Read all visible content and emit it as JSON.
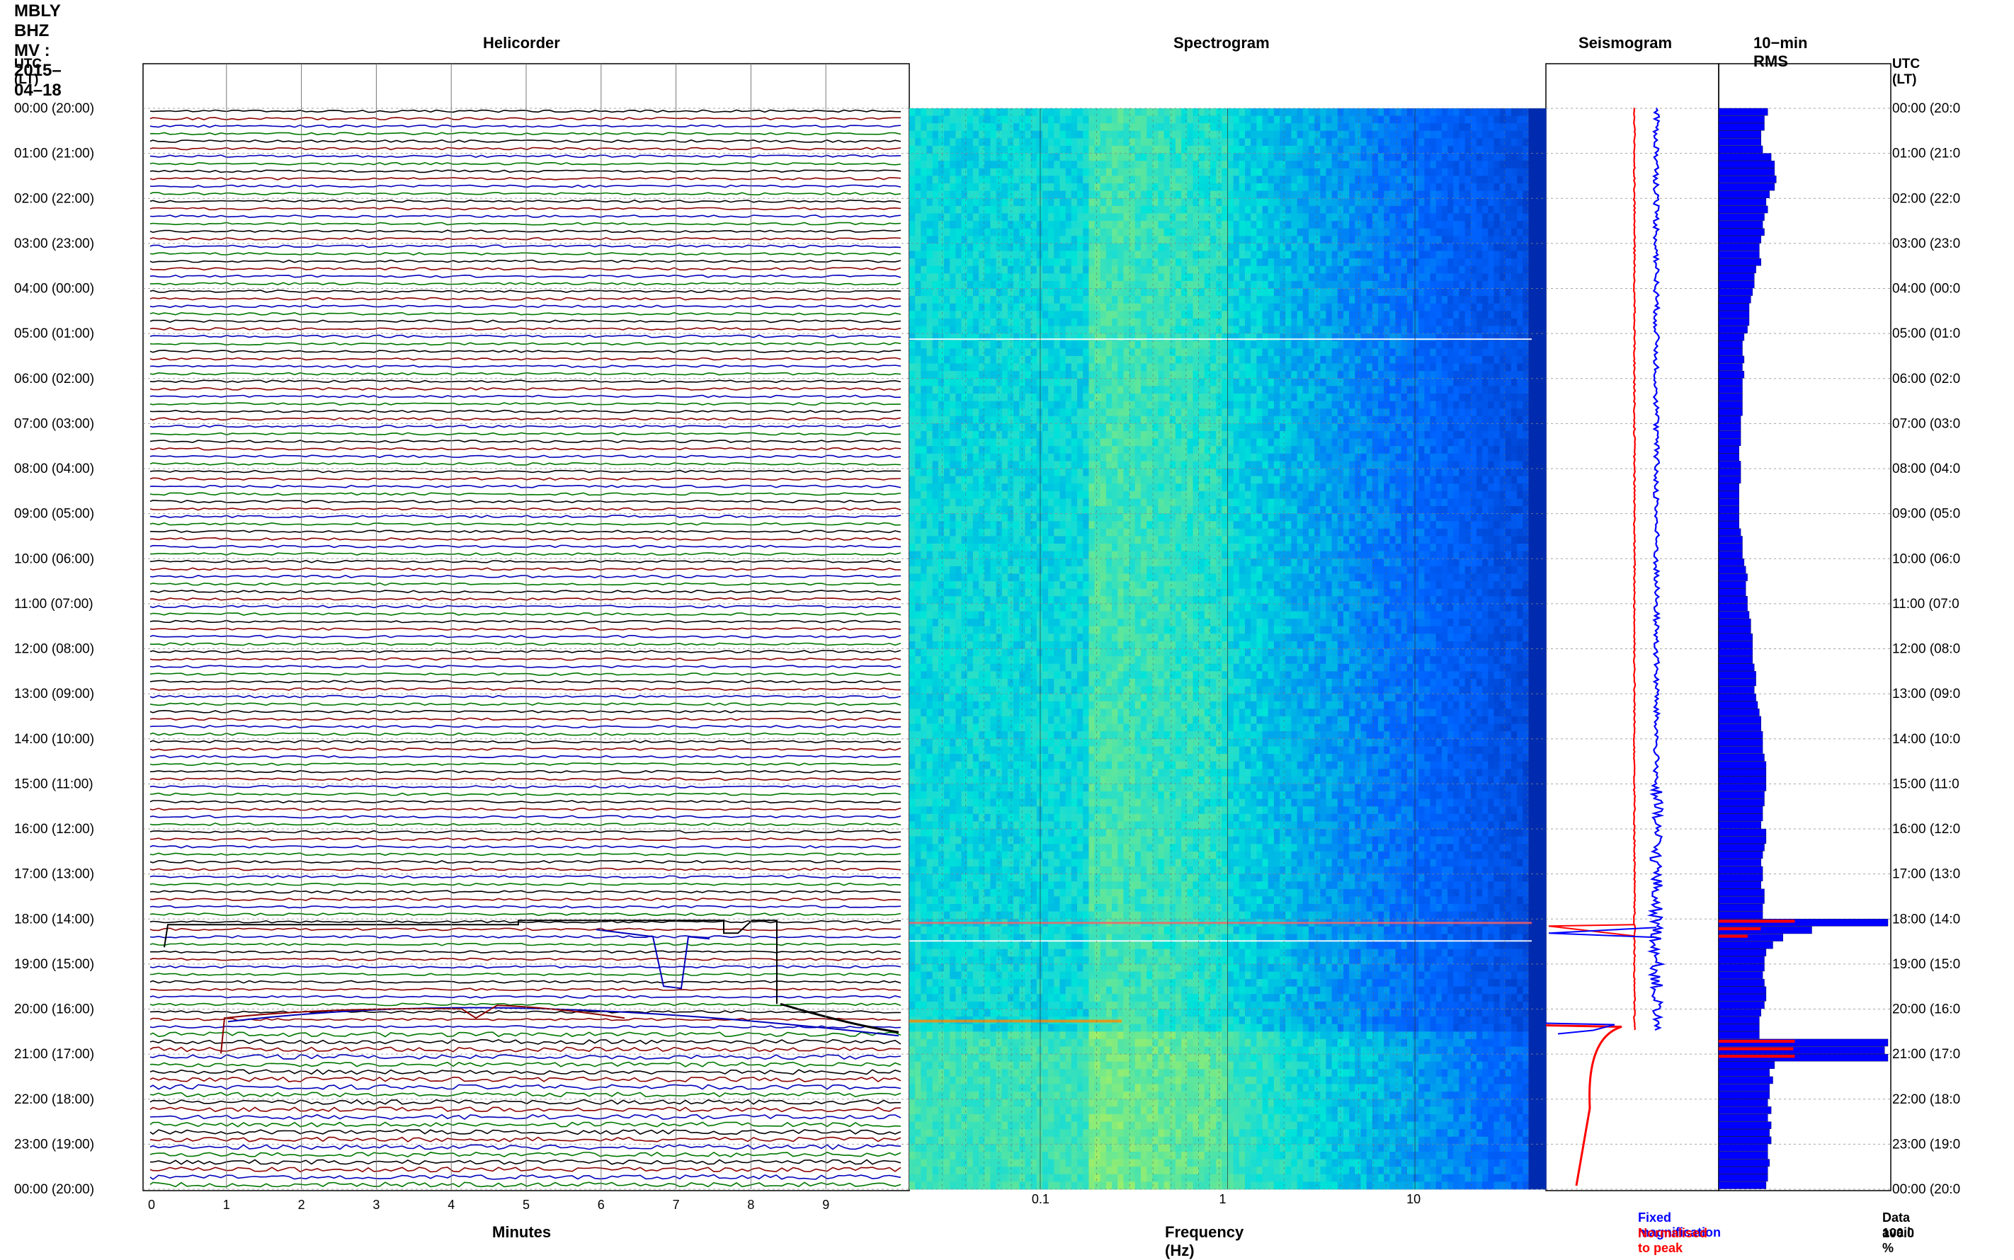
{
  "header": {
    "station_title": "MBLY BHZ MV : 2015–04–18",
    "left_axis_title": "UTC (LT)",
    "right_axis_title": "UTC (LT)"
  },
  "panels": {
    "helicorder": {
      "title": "Helicorder",
      "xlabel": "Minutes",
      "x_ticks": [
        "0",
        "1",
        "2",
        "3",
        "4",
        "5",
        "6",
        "7",
        "8",
        "9"
      ]
    },
    "spectrogram": {
      "title": "Spectrogram",
      "xlabel": "Frequency (Hz)",
      "x_ticks": [
        "0.1",
        "1",
        "10"
      ]
    },
    "seismogram": {
      "title": "Seismogram",
      "legend_fixed": "Fixed magnification",
      "legend_norm": "Normalised to peak"
    },
    "rms": {
      "title": "10−min RMS",
      "avail_label": "Data avail.",
      "avail_value": "100.0 %"
    }
  },
  "time_labels": [
    "00:00 (20:00)",
    "01:00 (21:00)",
    "02:00 (22:00)",
    "03:00 (23:00)",
    "04:00 (00:00)",
    "05:00 (01:00)",
    "06:00 (02:00)",
    "07:00 (03:00)",
    "08:00 (04:00)",
    "09:00 (05:00)",
    "10:00 (06:00)",
    "11:00 (07:00)",
    "12:00 (08:00)",
    "13:00 (09:00)",
    "14:00 (10:00)",
    "15:00 (11:00)",
    "16:00 (12:00)",
    "17:00 (13:00)",
    "18:00 (14:00)",
    "19:00 (15:00)",
    "20:00 (16:00)",
    "21:00 (17:00)",
    "22:00 (18:00)",
    "23:00 (19:00)",
    "00:00 (20:00)"
  ],
  "time_labels_right": [
    "00:00 (20:0",
    "01:00 (21:0",
    "02:00 (22:0",
    "03:00 (23:0",
    "04:00 (00:0",
    "05:00 (01:0",
    "06:00 (02:0",
    "07:00 (03:0",
    "08:00 (04:0",
    "09:00 (05:0",
    "10:00 (06:0",
    "11:00 (07:0",
    "12:00 (08:0",
    "13:00 (09:0",
    "14:00 (10:0",
    "15:00 (11:0",
    "16:00 (12:0",
    "17:00 (13:0",
    "18:00 (14:0",
    "19:00 (15:0",
    "20:00 (16:0",
    "21:00 (17:0",
    "22:00 (18:0",
    "23:00 (19:0",
    "00:00 (20:0"
  ],
  "colors": {
    "trace_cycle": [
      "#000000",
      "#8b0000",
      "#0000bb",
      "#007700"
    ],
    "fixed": "#0000ff",
    "normalised": "#ff0000",
    "rms_bar": "#0000ff",
    "rms_peak": "#ff0000",
    "grid": "#888888"
  },
  "chart_data": [
    {
      "type": "line",
      "name": "helicorder",
      "xlabel": "Minutes",
      "xlim": [
        0,
        10
      ],
      "x_ticks": [
        0,
        1,
        2,
        3,
        4,
        5,
        6,
        7,
        8,
        9
      ],
      "ylim_hours_utc": [
        0,
        24
      ],
      "lines_per_hour": 6,
      "minutes_per_line": 10,
      "events": [
        {
          "utc": "18:00",
          "note": "large offsets / steps around 18:00–20:30"
        },
        {
          "utc": "20:25",
          "note": "large disturbance"
        }
      ]
    },
    {
      "type": "heatmap",
      "name": "spectrogram",
      "xlabel": "Frequency (Hz)",
      "x_scale": "log",
      "xlim": [
        0.02,
        50
      ],
      "x_ticks": [
        0.1,
        1,
        10
      ],
      "ylim_hours_utc": [
        0,
        24
      ]
    },
    {
      "type": "line",
      "name": "seismogram",
      "series": [
        {
          "name": "Fixed magnification"
        },
        {
          "name": "Normalised to peak"
        }
      ],
      "ylim_hours_utc": [
        0,
        24
      ]
    },
    {
      "type": "bar",
      "name": "10-min RMS",
      "orientation": "horizontal",
      "ylim_hours_utc": [
        0,
        24
      ],
      "bars_per_hour": 6,
      "relative_values": [
        0.29,
        0.27,
        0.27,
        0.25,
        0.25,
        0.26,
        0.31,
        0.33,
        0.33,
        0.34,
        0.33,
        0.3,
        0.28,
        0.29,
        0.27,
        0.26,
        0.27,
        0.25,
        0.24,
        0.24,
        0.25,
        0.22,
        0.21,
        0.21,
        0.2,
        0.19,
        0.18,
        0.18,
        0.18,
        0.17,
        0.15,
        0.14,
        0.14,
        0.15,
        0.14,
        0.15,
        0.14,
        0.14,
        0.14,
        0.14,
        0.14,
        0.13,
        0.13,
        0.13,
        0.13,
        0.12,
        0.12,
        0.13,
        0.13,
        0.13,
        0.12,
        0.12,
        0.12,
        0.12,
        0.12,
        0.12,
        0.13,
        0.14,
        0.14,
        0.14,
        0.15,
        0.16,
        0.17,
        0.16,
        0.16,
        0.17,
        0.17,
        0.18,
        0.19,
        0.19,
        0.2,
        0.2,
        0.2,
        0.2,
        0.21,
        0.22,
        0.22,
        0.21,
        0.22,
        0.23,
        0.24,
        0.25,
        0.25,
        0.26,
        0.26,
        0.26,
        0.27,
        0.28,
        0.28,
        0.28,
        0.28,
        0.27,
        0.27,
        0.26,
        0.26,
        0.25,
        0.28,
        0.28,
        0.27,
        0.26,
        0.25,
        0.26,
        0.26,
        0.25,
        0.27,
        0.27,
        0.26,
        0.26,
        1.0,
        0.55,
        0.38,
        0.32,
        0.28,
        0.27,
        0.27,
        0.26,
        0.27,
        0.28,
        0.28,
        0.27,
        0.25,
        0.24,
        0.24,
        0.24,
        1.0,
        0.98,
        1.0,
        0.33,
        0.3,
        0.32,
        0.3,
        0.3,
        0.29,
        0.31,
        0.29,
        0.31,
        0.3,
        0.31,
        0.29,
        0.29,
        0.3,
        0.29,
        0.29,
        0.28
      ]
    }
  ]
}
